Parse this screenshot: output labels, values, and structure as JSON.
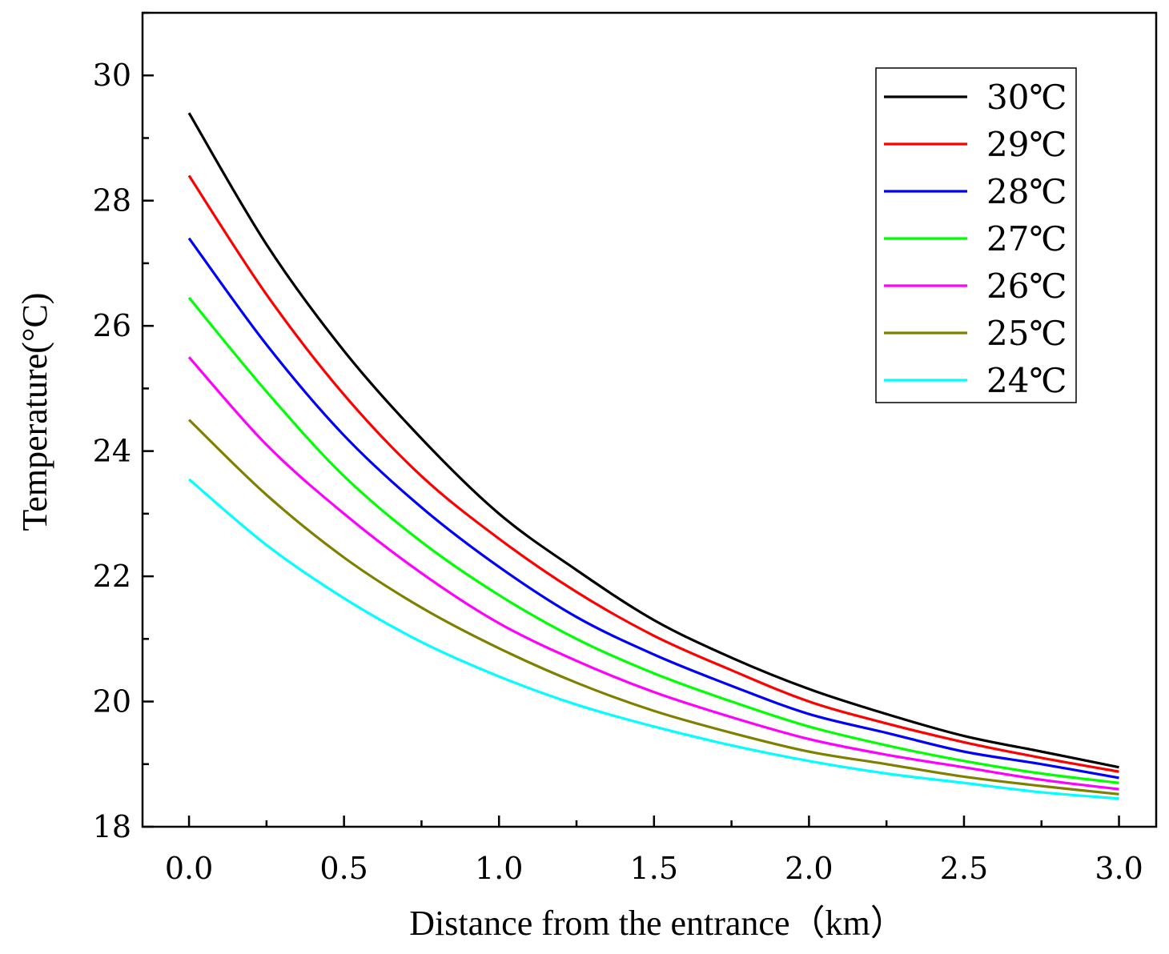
{
  "chart_data": {
    "type": "line",
    "title": "",
    "xlabel": "Distance from the entrance（km）",
    "ylabel": "Temperature(°C)",
    "xlim": [
      -0.15,
      3.12
    ],
    "ylim": [
      18,
      31
    ],
    "x_major_ticks": [
      0.0,
      0.5,
      1.0,
      1.5,
      2.0,
      2.5,
      3.0
    ],
    "x_tick_labels": [
      "0.0",
      "0.5",
      "1.0",
      "1.5",
      "2.0",
      "2.5",
      "3.0"
    ],
    "y_major_ticks": [
      18,
      20,
      22,
      24,
      26,
      28,
      30
    ],
    "y_tick_labels": [
      "18",
      "20",
      "22",
      "24",
      "26",
      "28",
      "30"
    ],
    "grid": false,
    "legend_position": "top-right",
    "x": [
      0.0,
      0.25,
      0.5,
      0.75,
      1.0,
      1.25,
      1.5,
      1.75,
      2.0,
      2.25,
      2.5,
      2.75,
      3.0
    ],
    "series": [
      {
        "name": "30℃",
        "color": "#000000",
        "values": [
          29.4,
          27.3,
          25.6,
          24.2,
          23.0,
          22.1,
          21.3,
          20.7,
          20.2,
          19.8,
          19.45,
          19.2,
          18.95
        ]
      },
      {
        "name": "29℃",
        "color": "#ff0000",
        "values": [
          28.4,
          26.5,
          24.9,
          23.6,
          22.6,
          21.75,
          21.05,
          20.5,
          20.0,
          19.65,
          19.35,
          19.1,
          18.88
        ]
      },
      {
        "name": "28℃",
        "color": "#0000ff",
        "values": [
          27.4,
          25.7,
          24.25,
          23.1,
          22.15,
          21.35,
          20.75,
          20.25,
          19.8,
          19.5,
          19.2,
          19.0,
          18.78
        ]
      },
      {
        "name": "27℃",
        "color": "#00ff00",
        "values": [
          26.45,
          24.95,
          23.6,
          22.55,
          21.7,
          21.0,
          20.45,
          20.0,
          19.6,
          19.3,
          19.05,
          18.85,
          18.7
        ]
      },
      {
        "name": "26℃",
        "color": "#ff00ff",
        "values": [
          25.5,
          24.1,
          23.0,
          22.05,
          21.25,
          20.65,
          20.15,
          19.75,
          19.4,
          19.15,
          18.95,
          18.75,
          18.6
        ]
      },
      {
        "name": "25℃",
        "color": "#808000",
        "values": [
          24.5,
          23.3,
          22.3,
          21.5,
          20.85,
          20.3,
          19.85,
          19.5,
          19.2,
          19.0,
          18.8,
          18.65,
          18.52
        ]
      },
      {
        "name": "24℃",
        "color": "#00ffff",
        "values": [
          23.55,
          22.5,
          21.65,
          20.95,
          20.4,
          19.95,
          19.6,
          19.3,
          19.05,
          18.85,
          18.7,
          18.55,
          18.45
        ]
      }
    ]
  }
}
